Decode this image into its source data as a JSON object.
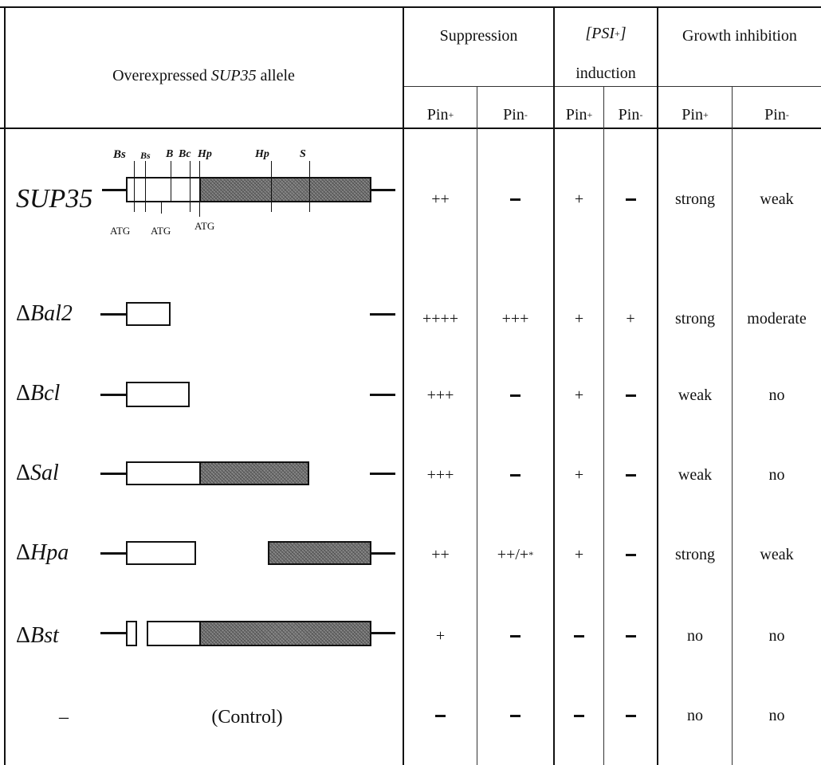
{
  "header": {
    "allele_prefix": "Overexpressed ",
    "allele_gene": "SUP35",
    "allele_suffix": " allele",
    "suppression": "Suppression",
    "psi_open": "[PSI",
    "psi_sup": "+",
    "psi_close": "]",
    "induction": "induction",
    "growth": "Growth inhibition",
    "pin": "Pin",
    "plus": "+",
    "minus": "-"
  },
  "diagram": {
    "sites": [
      "Bs",
      "Bs",
      "B",
      "Bc",
      "Hp",
      "Hp",
      "S"
    ],
    "atg": [
      "ATG",
      "ATG",
      "ATG"
    ]
  },
  "rows": [
    {
      "label": "SUP35",
      "delta": "",
      "supp_pos": "++",
      "supp_neg": "",
      "psi_pos": "+",
      "psi_neg": "",
      "growth_pos": "strong",
      "growth_neg": "weak"
    },
    {
      "label": "Bal2",
      "delta": "Δ",
      "supp_pos": "++++",
      "supp_neg": "+++",
      "psi_pos": "+",
      "psi_neg": "+",
      "growth_pos": "strong",
      "growth_neg": "moderate"
    },
    {
      "label": "Bcl",
      "delta": "Δ",
      "supp_pos": "+++",
      "supp_neg": "",
      "psi_pos": "+",
      "psi_neg": "",
      "growth_pos": "weak",
      "growth_neg": "no"
    },
    {
      "label": "Sal",
      "delta": "Δ",
      "supp_pos": "+++",
      "supp_neg": "",
      "psi_pos": "+",
      "psi_neg": "",
      "growth_pos": "weak",
      "growth_neg": "no"
    },
    {
      "label": "Hpa",
      "delta": "Δ",
      "supp_pos": "++",
      "supp_neg": "++/+",
      "supp_neg_sup": "*",
      "psi_pos": "+",
      "psi_neg": "",
      "growth_pos": "strong",
      "growth_neg": "weak"
    },
    {
      "label": "Bst",
      "delta": "Δ",
      "supp_pos": "+",
      "supp_neg": "",
      "psi_pos": "",
      "psi_neg": "",
      "growth_pos": "no",
      "growth_neg": "no"
    },
    {
      "label": "–",
      "control": "(Control)",
      "supp_pos": "",
      "supp_neg": "",
      "psi_pos": "",
      "psi_neg": "",
      "growth_pos": "no",
      "growth_neg": "no"
    }
  ]
}
